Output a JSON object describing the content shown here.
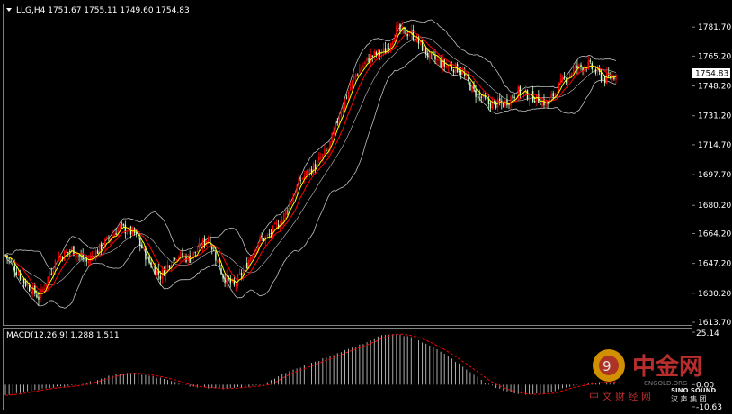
{
  "colors": {
    "background": "#000000",
    "grid_frame": "#808080",
    "up_candle": "#ff0000",
    "down_candle": "#ccffcc",
    "ma_fast": "#ffff00",
    "ma_slow": "#ff0000",
    "bollinger": "#c0c0c0",
    "macd_hist": "#c0c0c0",
    "macd_signal": "#ff0000",
    "price_tag_bg": "#ffffff",
    "price_tag_text": "#000000"
  },
  "header": {
    "symbol_line": "LLG,H4  1751.67 1755.11 1749.60 1754.83",
    "menu_icon": "triangle-down-icon"
  },
  "macd_header": {
    "label": "MACD(12,26,9) 1.288 1.511"
  },
  "watermark": {
    "brand_cn": "中金网",
    "site": "CNGOLD.ORG",
    "tagline_cn": "中 文 财 经 网",
    "partner": "SINO SOUND",
    "partner_cn": "汉 声 集 团"
  },
  "chart_data": [
    {
      "type": "candlestick",
      "title": "LLG,H4",
      "ohlc_last": {
        "open": 1751.67,
        "high": 1755.11,
        "low": 1749.6,
        "close": 1754.83
      },
      "current_price_label": "1754.83",
      "ylim": [
        1613.7,
        1790.0
      ],
      "y_ticks": [
        "1781.70",
        "1765.20",
        "1748.20",
        "1731.20",
        "1714.70",
        "1697.70",
        "1680.20",
        "1664.20",
        "1647.20",
        "1630.20",
        "1613.70"
      ],
      "overlays": [
        "moving average fast (yellow)",
        "moving average slow (red)",
        "bollinger bands"
      ],
      "close_path_anchors": [
        [
          0,
          1652
        ],
        [
          10,
          1637
        ],
        [
          18,
          1628
        ],
        [
          28,
          1650
        ],
        [
          36,
          1655
        ],
        [
          44,
          1648
        ],
        [
          55,
          1660
        ],
        [
          62,
          1668
        ],
        [
          70,
          1664
        ],
        [
          78,
          1648
        ],
        [
          84,
          1640
        ],
        [
          92,
          1652
        ],
        [
          100,
          1650
        ],
        [
          110,
          1662
        ],
        [
          118,
          1640
        ],
        [
          124,
          1634
        ],
        [
          130,
          1645
        ],
        [
          137,
          1660
        ],
        [
          142,
          1662
        ],
        [
          150,
          1672
        ],
        [
          160,
          1695
        ],
        [
          168,
          1703
        ],
        [
          175,
          1712
        ],
        [
          182,
          1735
        ],
        [
          190,
          1755
        ],
        [
          198,
          1765
        ],
        [
          206,
          1768
        ],
        [
          212,
          1780
        ],
        [
          220,
          1778
        ],
        [
          230,
          1765
        ],
        [
          238,
          1760
        ],
        [
          246,
          1758
        ],
        [
          254,
          1745
        ],
        [
          262,
          1738
        ],
        [
          270,
          1738
        ],
        [
          278,
          1745
        ],
        [
          286,
          1742
        ],
        [
          294,
          1738
        ],
        [
          300,
          1748
        ],
        [
          308,
          1758
        ],
        [
          316,
          1760
        ],
        [
          325,
          1752
        ],
        [
          332,
          1754.83
        ]
      ],
      "candle_count": 332
    },
    {
      "type": "bar",
      "title": "MACD(12,26,9)",
      "macd": 1.288,
      "signal": 1.511,
      "ylim": [
        -10.63,
        25.14
      ],
      "y_ticks": [
        "25.14",
        "0.00",
        "-10.63"
      ],
      "hist_anchors": [
        [
          0,
          -5
        ],
        [
          20,
          -2
        ],
        [
          40,
          0
        ],
        [
          60,
          5
        ],
        [
          70,
          5.5
        ],
        [
          85,
          3
        ],
        [
          100,
          -1
        ],
        [
          118,
          -2
        ],
        [
          130,
          -1
        ],
        [
          140,
          0
        ],
        [
          150,
          5
        ],
        [
          165,
          10
        ],
        [
          180,
          15
        ],
        [
          195,
          20
        ],
        [
          205,
          24
        ],
        [
          212,
          24.5
        ],
        [
          222,
          22
        ],
        [
          232,
          18
        ],
        [
          246,
          10
        ],
        [
          260,
          1
        ],
        [
          270,
          -3
        ],
        [
          282,
          -5
        ],
        [
          294,
          -4
        ],
        [
          305,
          -1
        ],
        [
          318,
          1
        ],
        [
          332,
          1.288
        ]
      ]
    }
  ]
}
